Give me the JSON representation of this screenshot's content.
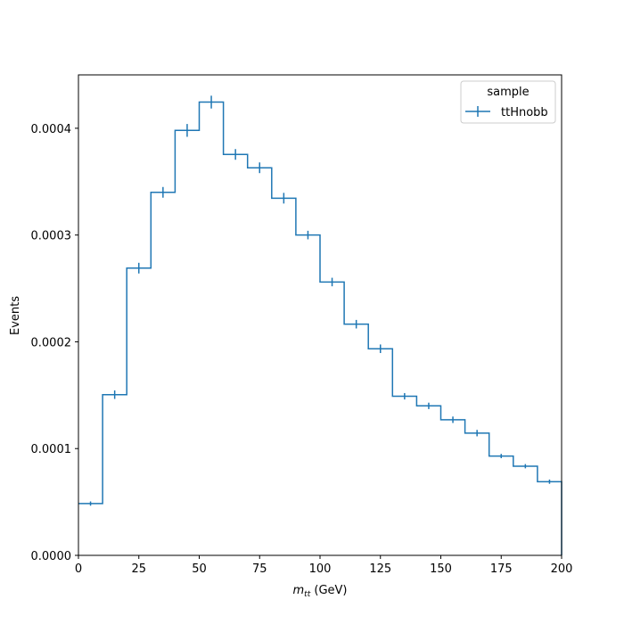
{
  "chart_data": {
    "type": "histogram",
    "title": "",
    "xlabel_main": "m",
    "xlabel_sub": "tt",
    "xlabel_unit": " (GeV)",
    "ylabel": "Events",
    "xlim": [
      0,
      200
    ],
    "ylim": [
      0,
      0.00045
    ],
    "xticks": [
      0,
      25,
      50,
      75,
      100,
      125,
      150,
      175,
      200
    ],
    "yticks": [
      0.0,
      0.0001,
      0.0002,
      0.0003,
      0.0004
    ],
    "ytick_labels": [
      "0.0000",
      "0.0001",
      "0.0002",
      "0.0003",
      "0.0004"
    ],
    "grid": false,
    "legend": {
      "title": "sample",
      "placement": "top-right",
      "entries": [
        "ttHnobb"
      ]
    },
    "series": [
      {
        "name": "ttHnobb",
        "color": "#1f77b4",
        "bin_edges": [
          0,
          10,
          20,
          30,
          40,
          50,
          60,
          70,
          80,
          90,
          100,
          110,
          120,
          130,
          140,
          150,
          160,
          170,
          180,
          190,
          200
        ],
        "values": [
          4.85e-05,
          0.0001505,
          0.000269,
          0.00034,
          0.000398,
          0.0004245,
          0.0003755,
          0.000363,
          0.0003345,
          0.0003,
          0.000256,
          0.0002165,
          0.0001935,
          0.000149,
          0.00014,
          0.000127,
          0.0001145,
          9.3e-05,
          8.35e-05,
          6.9e-05
        ],
        "errors": [
          2e-06,
          4e-06,
          5e-06,
          5e-06,
          6e-06,
          6e-06,
          5e-06,
          5e-06,
          5e-06,
          4e-06,
          4e-06,
          4e-06,
          4e-06,
          3e-06,
          3e-06,
          3e-06,
          3e-06,
          2e-06,
          2e-06,
          2e-06
        ]
      }
    ]
  }
}
